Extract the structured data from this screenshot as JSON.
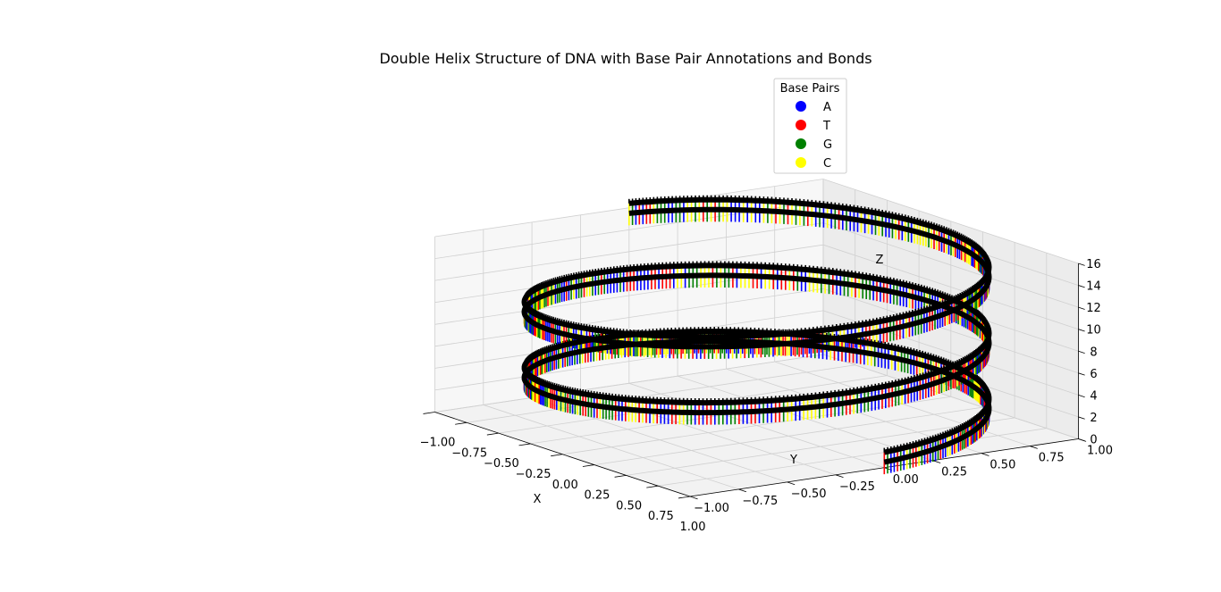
{
  "chart_data": {
    "type": "3d-line",
    "title": "Double Helix Structure of DNA with Base Pair Annotations and Bonds",
    "xlabel": "X",
    "ylabel": "Y",
    "zlabel": "Z",
    "xlim": [
      -1.0,
      1.0
    ],
    "ylim": [
      -1.0,
      1.0
    ],
    "zlim": [
      0,
      16
    ],
    "x_ticks": [
      "−1.00",
      "−0.75",
      "−0.50",
      "−0.25",
      "0.00",
      "0.25",
      "0.50",
      "0.75",
      "1.00"
    ],
    "y_ticks": [
      "−1.00",
      "−0.75",
      "−0.50",
      "−0.25",
      "0.00",
      "0.25",
      "0.50",
      "0.75",
      "1.00"
    ],
    "z_ticks": [
      "0",
      "2",
      "4",
      "6",
      "8",
      "10",
      "12",
      "14",
      "16"
    ],
    "grid": true,
    "legend": {
      "title": "Base Pairs",
      "placement": "top-right",
      "entries": [
        {
          "label": "A",
          "color": "#0000ff"
        },
        {
          "label": "T",
          "color": "#ff0000"
        },
        {
          "label": "G",
          "color": "#008000"
        },
        {
          "label": "C",
          "color": "#ffff00"
        }
      ]
    },
    "helix": {
      "radius": 1.0,
      "z_start": 0,
      "z_end": 15,
      "turns": 2.5,
      "strand_offset": 0.2,
      "bond_color": "#000000",
      "base_pair_colors": [
        "#0000ff",
        "#ff0000",
        "#008000",
        "#ffff00"
      ]
    }
  }
}
